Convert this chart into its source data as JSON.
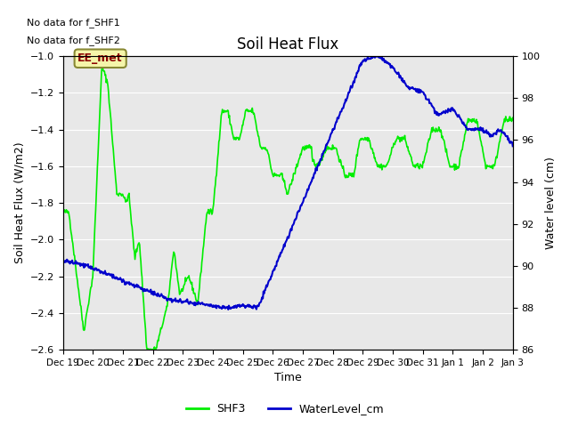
{
  "title": "Soil Heat Flux",
  "ylabel_left": "Soil Heat Flux (W/m2)",
  "ylabel_right": "Water level (cm)",
  "xlabel": "Time",
  "no_data_text": [
    "No data for f_SHF1",
    "No data for f_SHF2"
  ],
  "ee_met_label": "EE_met",
  "ylim_left": [
    -2.6,
    -1.0
  ],
  "ylim_right": [
    86,
    100
  ],
  "yticks_left": [
    -2.6,
    -2.4,
    -2.2,
    -2.0,
    -1.8,
    -1.6,
    -1.4,
    -1.2,
    -1.0
  ],
  "yticks_right": [
    86,
    88,
    90,
    92,
    94,
    96,
    98,
    100
  ],
  "bg_color": "#e8e8e8",
  "fig_color": "#ffffff",
  "shf3_color": "#00ee00",
  "water_color": "#0000cc",
  "legend_entries": [
    "SHF3",
    "WaterLevel_cm"
  ],
  "x_tick_labels": [
    "Dec 19",
    "Dec 20",
    "Dec 21",
    "Dec 22",
    "Dec 23",
    "Dec 24",
    "Dec 25",
    "Dec 26",
    "Dec 27",
    "Dec 28",
    "Dec 29",
    "Dec 30",
    "Dec 31",
    "Jan 1",
    "Jan 2",
    "Jan 3"
  ]
}
